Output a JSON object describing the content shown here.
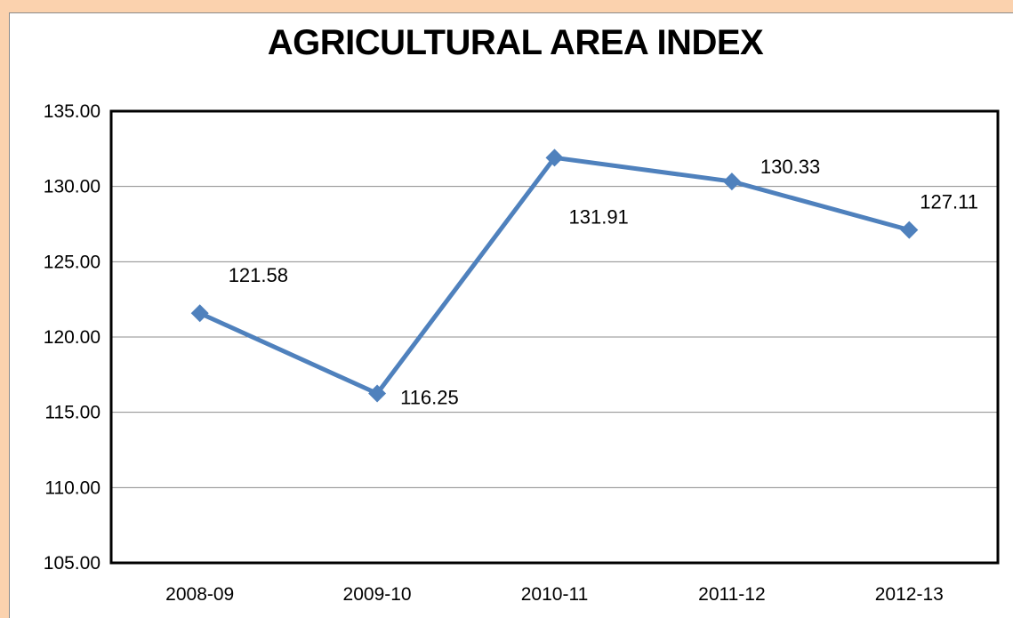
{
  "chart_data": {
    "type": "line",
    "title": "AGRICULTURAL  AREA INDEX",
    "categories": [
      "2008-09",
      "2009-10",
      "2010-11",
      "2011-12",
      "2012-13"
    ],
    "series": [
      {
        "values": [
          121.58,
          116.25,
          131.91,
          130.33,
          127.11
        ]
      }
    ],
    "data_labels": [
      "121.58",
      "116.25",
      "131.91",
      "130.33",
      "127.11"
    ],
    "y_ticks": [
      "105.00",
      "110.00",
      "115.00",
      "120.00",
      "125.00",
      "130.00",
      "135.00"
    ],
    "ylim": [
      105,
      135
    ],
    "xlabel": "",
    "ylabel": "",
    "grid": true,
    "legend": "none",
    "colors": {
      "line": "#4f81bd",
      "gridline": "#8c8c8c",
      "plot_border": "#000000",
      "page_background": "#fbd2ae"
    }
  }
}
